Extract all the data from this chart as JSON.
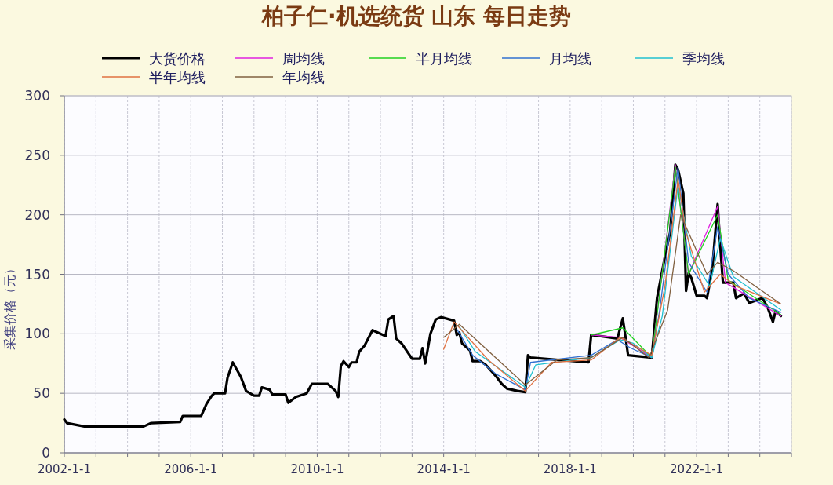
{
  "chart_data": {
    "type": "line",
    "title": "柏子仁·机选统货 山东 每日走势",
    "ylabel": "采集价格（元）",
    "legend": "top",
    "grid": true,
    "marker": "none",
    "line_style": "solid",
    "xlim": [
      "2002-01-01",
      "2025-01-01"
    ],
    "xticks": [
      {
        "value": "2002-01-01",
        "label": "2002-1-1"
      },
      {
        "value": "2003-01-01",
        "label": null
      },
      {
        "value": "2004-01-01",
        "label": null
      },
      {
        "value": "2005-01-01",
        "label": null
      },
      {
        "value": "2006-01-01",
        "label": "2006-1-1"
      },
      {
        "value": "2007-01-01",
        "label": null
      },
      {
        "value": "2008-01-01",
        "label": null
      },
      {
        "value": "2009-01-01",
        "label": null
      },
      {
        "value": "2010-01-01",
        "label": "2010-1-1"
      },
      {
        "value": "2011-01-01",
        "label": null
      },
      {
        "value": "2012-01-01",
        "label": null
      },
      {
        "value": "2013-01-01",
        "label": null
      },
      {
        "value": "2014-01-01",
        "label": "2014-1-1"
      },
      {
        "value": "2015-01-01",
        "label": null
      },
      {
        "value": "2016-01-01",
        "label": null
      },
      {
        "value": "2017-01-01",
        "label": null
      },
      {
        "value": "2018-01-01",
        "label": "2018-1-1"
      },
      {
        "value": "2019-01-01",
        "label": null
      },
      {
        "value": "2020-01-01",
        "label": null
      },
      {
        "value": "2021-01-01",
        "label": null
      },
      {
        "value": "2022-01-01",
        "label": "2022-1-1"
      },
      {
        "value": "2023-01-01",
        "label": null
      },
      {
        "value": "2024-01-01",
        "label": null
      },
      {
        "value": "2025-01-01",
        "label": null
      }
    ],
    "ylim": [
      0,
      300
    ],
    "yticks": [
      0,
      50,
      100,
      150,
      200,
      250,
      300
    ],
    "series": [
      {
        "name": "大货价格",
        "color": "#000000",
        "x": [
          "2002-01",
          "2002-02",
          "2002-09",
          "2004-07",
          "2004-10",
          "2005-09",
          "2005-10",
          "2006-05",
          "2006-07",
          "2006-09",
          "2006-10",
          "2007-02",
          "2007-03",
          "2007-05",
          "2007-08",
          "2007-10",
          "2008-01",
          "2008-03",
          "2008-04",
          "2008-07",
          "2008-08",
          "2009-01",
          "2009-02",
          "2009-05",
          "2009-09",
          "2009-11",
          "2010-05",
          "2010-08",
          "2010-09",
          "2010-10",
          "2010-11",
          "2011-01",
          "2011-02",
          "2011-04",
          "2011-05",
          "2011-07",
          "2011-10",
          "2012-01",
          "2012-03",
          "2012-04",
          "2012-06",
          "2012-07",
          "2012-09",
          "2013-01",
          "2013-04",
          "2013-05",
          "2013-06",
          "2013-07",
          "2013-08",
          "2013-10",
          "2013-12",
          "2014-05",
          "2014-06",
          "2014-07",
          "2014-08",
          "2014-11",
          "2014-12",
          "2015-03",
          "2015-05",
          "2015-09",
          "2015-11",
          "2016-01",
          "2016-05",
          "2016-08",
          "2016-09",
          "2016-10",
          "2018-08",
          "2018-09",
          "2019-07",
          "2019-09",
          "2019-10",
          "2019-11",
          "2020-08",
          "2020-10",
          "2021-01",
          "2021-03",
          "2021-05",
          "2021-06",
          "2021-08",
          "2021-09",
          "2021-10",
          "2021-11",
          "2022-01",
          "2022-04",
          "2022-05",
          "2022-07",
          "2022-09",
          "2022-10",
          "2022-11",
          "2023-03",
          "2023-04",
          "2023-07",
          "2023-09",
          "2024-02",
          "2024-04",
          "2024-06",
          "2024-07",
          "2024-09"
        ],
        "values": [
          28,
          25,
          22,
          22,
          25,
          26,
          31,
          31,
          41,
          48,
          50,
          50,
          63,
          76,
          64,
          52,
          48,
          48,
          55,
          53,
          49,
          49,
          42,
          47,
          50,
          58,
          58,
          52,
          47,
          73,
          77,
          72,
          76,
          76,
          85,
          90,
          103,
          100,
          98,
          112,
          115,
          96,
          92,
          79,
          79,
          88,
          75,
          87,
          100,
          112,
          114,
          111,
          99,
          101,
          92,
          86,
          77,
          77,
          74,
          64,
          58,
          54,
          52,
          51,
          82,
          80,
          76,
          99,
          96,
          113,
          98,
          82,
          80,
          130,
          165,
          185,
          242,
          238,
          218,
          136,
          151,
          147,
          132,
          132,
          130,
          154,
          209,
          174,
          143,
          143,
          130,
          134,
          126,
          130,
          122,
          110,
          119,
          115
        ]
      },
      {
        "name": "周均线",
        "color": "#e020e0",
        "x": [
          "2018-09",
          "2019-08",
          "2020-08",
          "2021-05",
          "2021-10",
          "2022-09",
          "2022-12",
          "2024-09"
        ],
        "values": [
          99,
          97,
          80,
          242,
          150,
          207,
          143,
          115
        ]
      },
      {
        "name": "半月均线",
        "color": "#20d020",
        "x": [
          "2018-09",
          "2019-09",
          "2020-08",
          "2021-05",
          "2021-10",
          "2022-09",
          "2023-01",
          "2024-09"
        ],
        "values": [
          99,
          105,
          80,
          240,
          150,
          200,
          145,
          116
        ]
      },
      {
        "name": "月均线",
        "color": "#3070d0",
        "x": [
          "2014-06",
          "2014-12",
          "2015-09",
          "2016-08",
          "2016-10",
          "2018-09",
          "2019-07",
          "2019-12",
          "2020-08",
          "2020-11",
          "2021-06",
          "2021-10",
          "2022-05",
          "2022-09",
          "2023-01",
          "2023-09",
          "2024-09"
        ],
        "values": [
          104,
          82,
          66,
          53,
          76,
          82,
          95,
          88,
          80,
          120,
          240,
          160,
          135,
          190,
          150,
          130,
          118
        ]
      },
      {
        "name": "季均线",
        "color": "#20c0d0",
        "x": [
          "2014-07",
          "2015-01",
          "2016-08",
          "2016-12",
          "2018-09",
          "2019-08",
          "2020-01",
          "2020-08",
          "2020-12",
          "2021-06",
          "2021-11",
          "2022-06",
          "2022-10",
          "2023-03",
          "2024-09"
        ],
        "values": [
          106,
          85,
          55,
          74,
          80,
          95,
          92,
          80,
          115,
          225,
          165,
          140,
          180,
          148,
          120
        ]
      },
      {
        "name": "半年均线",
        "color": "#e07040",
        "x": [
          "2014-01",
          "2014-05",
          "2015-06",
          "2016-08",
          "2017-06",
          "2018-09",
          "2019-08",
          "2020-08",
          "2021-01",
          "2021-06",
          "2021-09",
          "2022-04",
          "2022-10",
          "2023-04",
          "2024-09"
        ],
        "values": [
          87,
          110,
          78,
          52,
          76,
          78,
          97,
          82,
          140,
          230,
          185,
          135,
          150,
          140,
          125
        ]
      },
      {
        "name": "年均线",
        "color": "#806040",
        "x": [
          "2014-01",
          "2014-07",
          "2016-08",
          "2017-08",
          "2018-09",
          "2019-09",
          "2020-07",
          "2021-02",
          "2021-07",
          "2021-10",
          "2022-05",
          "2022-09",
          "2023-03",
          "2024-09"
        ],
        "values": [
          97,
          108,
          57,
          78,
          80,
          97,
          80,
          120,
          200,
          185,
          150,
          160,
          153,
          125
        ]
      }
    ]
  }
}
